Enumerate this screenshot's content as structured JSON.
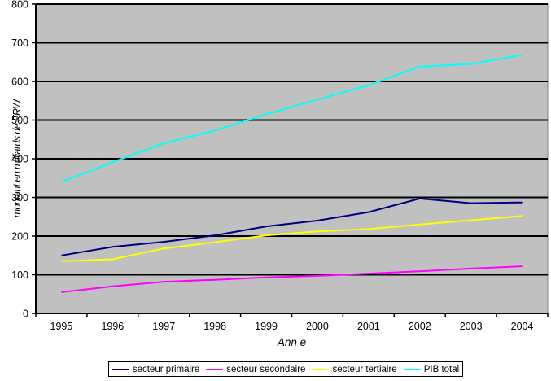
{
  "chart_data": {
    "type": "line",
    "title": "",
    "xlabel": "Ann e",
    "ylabel": "montant en milliards de FRW",
    "categories": [
      "1995",
      "1996",
      "1997",
      "1998",
      "1999",
      "2000",
      "2001",
      "2002",
      "2003",
      "2004"
    ],
    "series": [
      {
        "name": "secteur primaire",
        "color": "#000080",
        "values": [
          150,
          172,
          185,
          202,
          225,
          240,
          262,
          297,
          285,
          287
        ]
      },
      {
        "name": "secteur secondaire",
        "color": "#FF00FF",
        "values": [
          55,
          70,
          82,
          87,
          93,
          97,
          103,
          109,
          116,
          122
        ]
      },
      {
        "name": "secteur tertiaire",
        "color": "#FFFF00",
        "values": [
          135,
          140,
          168,
          184,
          202,
          212,
          218,
          230,
          241,
          252
        ]
      },
      {
        "name": "PIB total",
        "color": "#00FFFF",
        "values": [
          340,
          391,
          440,
          473,
          515,
          553,
          590,
          638,
          645,
          668
        ]
      }
    ],
    "ylim": [
      0,
      800
    ],
    "yticks": [
      0,
      100,
      200,
      300,
      400,
      500,
      600,
      700,
      800
    ],
    "grid": "horizontal",
    "legend_position": "bottom",
    "plot_bg": "#C0C0C0",
    "page_bg": "#FFFFFF",
    "axis_color": "#000000",
    "gridline_color": "#000000"
  }
}
